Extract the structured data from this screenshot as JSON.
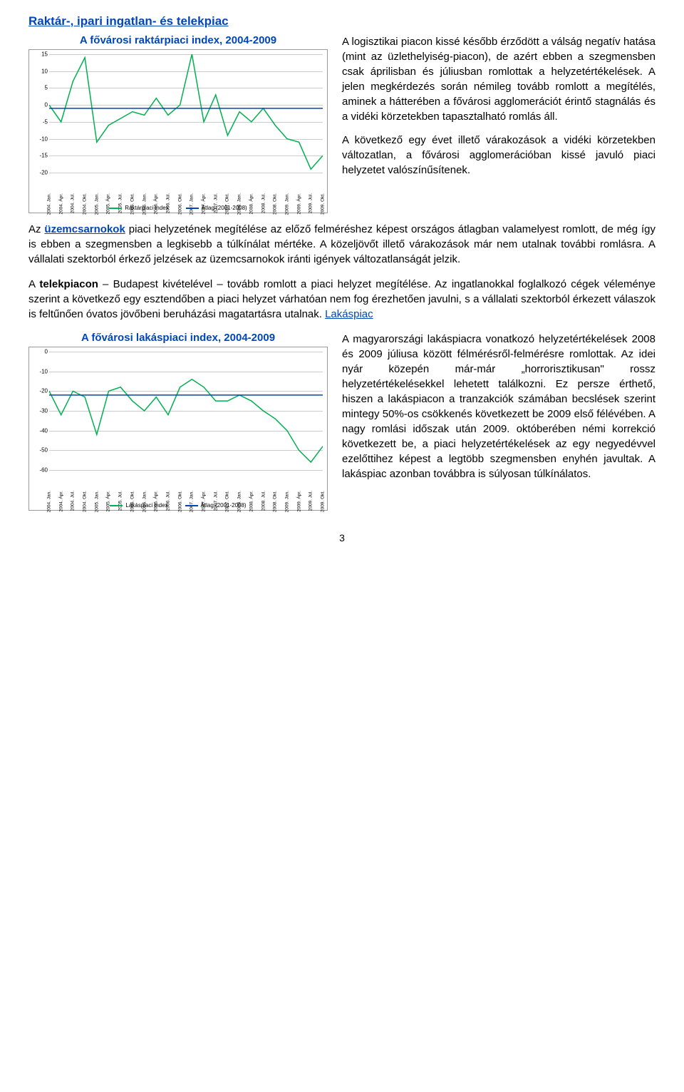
{
  "section1_title": "Raktár-, ipari ingatlan- és telekpiac",
  "chart1": {
    "type": "line",
    "title": "A fővárosi raktárpiaci index, 2004-2009",
    "ylim": [
      -20,
      15
    ],
    "ytick_step": 5,
    "xlabels": [
      "2004. Jan.",
      "2004. Ápr.",
      "2004. Júl.",
      "2004. Okt.",
      "2005. Jan.",
      "2005. Ápr.",
      "2005. Júl.",
      "2005. Okt.",
      "2006. Jan.",
      "2006. Ápr.",
      "2006. Júl.",
      "2006. Okt.",
      "2007. Jan.",
      "2007. Ápr.",
      "2007. Júl.",
      "2007. Okt.",
      "2008. Jan.",
      "2008. Ápr.",
      "2008. Júl.",
      "2008. Okt.",
      "2009. Jan.",
      "2009. Ápr.",
      "2009. Júl.",
      "2009. Okt."
    ],
    "series": [
      {
        "name": "Raktárpiaci index",
        "color": "#00b050",
        "width": 1.5,
        "values": [
          0,
          -5,
          7,
          14,
          -11,
          -6,
          -4,
          -2,
          -3,
          2,
          -3,
          0,
          15,
          -5,
          3,
          -9,
          -2,
          -5,
          -1,
          -6,
          -10,
          -11,
          -19,
          -15
        ]
      },
      {
        "name": "Átlag (2001-2008)",
        "color": "#0046b8",
        "width": 1.5,
        "values": [
          -1,
          -1,
          -1,
          -1,
          -1,
          -1,
          -1,
          -1,
          -1,
          -1,
          -1,
          -1,
          -1,
          -1,
          -1,
          -1,
          -1,
          -1,
          -1,
          -1,
          -1,
          -1,
          -1,
          -1
        ]
      }
    ],
    "grid_color": "#cccccc"
  },
  "para1a": "A logisztikai piacon kissé később érződött a válság negatív hatása (mint az üzlethelyiség-piacon), de azért ebben a szegmensben csak áprilisban és júliusban romlottak a helyzetértékelések. A jelen megkérdezés során némileg tovább romlott a megítélés, aminek a hátterében a fővárosi agglomerációt érintő stagnálás és a vidéki körzetekben tapasztalható romlás áll.",
  "para1b": "A következő egy évet illető várakozások a vidéki körzetekben változatlan, a fővárosi agglomerációban kissé javuló piaci helyzetet valószínűsítenek.",
  "para2_pre": "Az ",
  "para2_bold": "üzemcsarnokok",
  "para2_rest": " piaci helyzetének megítélése az előző felméréshez képest országos átlagban valamelyest romlott, de még így is ebben a szegmensben a legkisebb a túlkínálat mértéke. A közeljövőt illető várakozások már nem utalnak további romlásra. A vállalati szektorból érkező jelzések az üzemcsarnokok iránti igények változatlanságát jelzik.",
  "para3_pre": "A ",
  "para3_bold": "telekpiacon",
  "para3_rest": " – Budapest kivételével – tovább romlott a piaci helyzet megítélése. Az ingatlanokkal foglalkozó cégek véleménye szerint a következő egy esztendőben a piaci helyzet várhatóan nem fog érezhetően javulni, s a vállalati szektorból érkezett válaszok is feltűnően óvatos jövőbeni beruházási magatartásra utalnak. ",
  "para3_link": "Lakáspiac",
  "chart2": {
    "type": "line",
    "title": "A fővárosi lakáspiaci index, 2004-2009",
    "ylim": [
      -60,
      0
    ],
    "ytick_step": 10,
    "xlabels": [
      "2004. Jan.",
      "2004. Ápr.",
      "2004. Júl.",
      "2004. Okt.",
      "2005. Jan.",
      "2005. Ápr.",
      "2005. Júl.",
      "2005. Okt.",
      "2006. Jan.",
      "2006. Ápr.",
      "2006. Júl.",
      "2006. Okt.",
      "2007. Jan.",
      "2007. Ápr.",
      "2007. Júl.",
      "2007. Okt.",
      "2008. Jan.",
      "2008. Ápr.",
      "2008. Júl.",
      "2008. Okt.",
      "2009. Jan.",
      "2009. Ápr.",
      "2009. Júl.",
      "2009. Okt."
    ],
    "series": [
      {
        "name": "Lakáspiaci index",
        "color": "#00b050",
        "width": 1.5,
        "values": [
          -20,
          -32,
          -20,
          -23,
          -42,
          -20,
          -18,
          -25,
          -30,
          -23,
          -32,
          -18,
          -14,
          -18,
          -25,
          -25,
          -22,
          -25,
          -30,
          -34,
          -40,
          -50,
          -56,
          -48
        ]
      },
      {
        "name": "Átlag (2001-2008)",
        "color": "#0046b8",
        "width": 1.5,
        "values": [
          -22,
          -22,
          -22,
          -22,
          -22,
          -22,
          -22,
          -22,
          -22,
          -22,
          -22,
          -22,
          -22,
          -22,
          -22,
          -22,
          -22,
          -22,
          -22,
          -22,
          -22,
          -22,
          -22,
          -22
        ]
      }
    ],
    "grid_color": "#cccccc"
  },
  "para4": "A magyarországi lakáspiacra vonatkozó helyzetértékelések 2008 és 2009 júliusa között félmérésről-felmérésre romlottak. Az idei nyár közepén már-már „horrorisztikusan\" rossz helyzetértékelésekkel lehetett találkozni. Ez persze érthető, hiszen a lakáspiacon a tranzakciók számában becslések szerint mintegy 50%-os csökkenés következett be 2009 első félévében. A nagy romlási időszak után 2009. októberében némi korrekció következett be, a piaci helyzetértékelések az egy negyedévvel ezelőttihez képest a legtöbb szegmensben enyhén javultak. A lakáspiac azonban továbbra is súlyosan túlkínálatos.",
  "page_number": "3"
}
